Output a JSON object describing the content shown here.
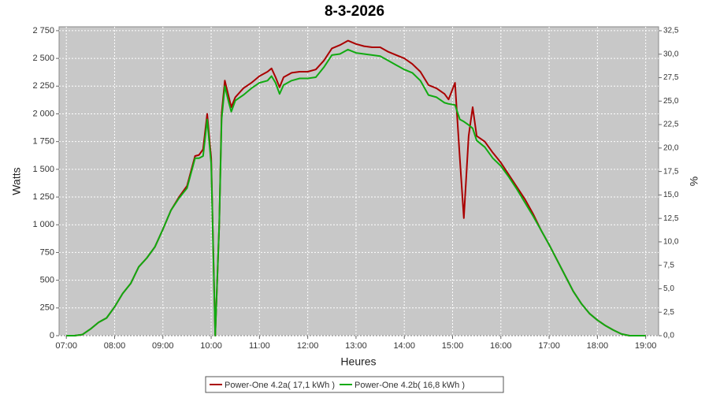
{
  "chart_data": {
    "type": "line",
    "title": "8-3-2026",
    "x_label": "Heures",
    "y_label": "Watts",
    "y2_label": "%",
    "x": [
      "07:00",
      "07:10",
      "07:20",
      "07:30",
      "07:40",
      "07:50",
      "08:00",
      "08:10",
      "08:20",
      "08:30",
      "08:40",
      "08:50",
      "09:00",
      "09:10",
      "09:20",
      "09:30",
      "09:40",
      "09:45",
      "09:50",
      "09:55",
      "10:00",
      "10:05",
      "10:10",
      "10:13",
      "10:17",
      "10:22",
      "10:25",
      "10:30",
      "10:40",
      "10:50",
      "11:00",
      "11:10",
      "11:15",
      "11:20",
      "11:25",
      "11:30",
      "11:40",
      "11:50",
      "12:00",
      "12:10",
      "12:20",
      "12:30",
      "12:40",
      "12:50",
      "13:00",
      "13:10",
      "13:20",
      "13:30",
      "13:40",
      "13:50",
      "14:00",
      "14:10",
      "14:20",
      "14:30",
      "14:40",
      "14:50",
      "14:55",
      "15:03",
      "15:09",
      "15:14",
      "15:20",
      "15:25",
      "15:30",
      "15:40",
      "15:50",
      "16:00",
      "16:10",
      "16:20",
      "16:30",
      "16:40",
      "16:50",
      "17:00",
      "17:10",
      "17:20",
      "17:30",
      "17:40",
      "17:50",
      "18:00",
      "18:10",
      "18:20",
      "18:30",
      "18:40",
      "18:50",
      "19:00"
    ],
    "series": [
      {
        "name": "Power-One 4.2a( 17,1 kWh )",
        "color": "#aa0000",
        "values": [
          0,
          0,
          10,
          60,
          120,
          160,
          260,
          380,
          470,
          620,
          700,
          800,
          960,
          1130,
          1250,
          1350,
          1620,
          1630,
          1680,
          2000,
          1600,
          0,
          1000,
          2000,
          2300,
          2150,
          2060,
          2150,
          2230,
          2280,
          2340,
          2380,
          2410,
          2330,
          2240,
          2330,
          2370,
          2380,
          2380,
          2400,
          2480,
          2590,
          2620,
          2660,
          2630,
          2610,
          2600,
          2600,
          2560,
          2530,
          2500,
          2450,
          2380,
          2260,
          2230,
          2180,
          2130,
          2280,
          1600,
          1060,
          1800,
          2060,
          1800,
          1750,
          1650,
          1560,
          1450,
          1340,
          1230,
          1100,
          950,
          820,
          680,
          540,
          400,
          290,
          200,
          140,
          90,
          50,
          15,
          0,
          0,
          0
        ]
      },
      {
        "name": "Power-One 4.2b( 16,8 kWh )",
        "color": "#11aa11",
        "values": [
          0,
          0,
          10,
          60,
          120,
          160,
          260,
          380,
          470,
          620,
          700,
          800,
          960,
          1130,
          1240,
          1330,
          1600,
          1600,
          1620,
          1950,
          1550,
          0,
          1000,
          1950,
          2250,
          2100,
          2020,
          2120,
          2170,
          2230,
          2280,
          2300,
          2340,
          2280,
          2180,
          2260,
          2300,
          2320,
          2320,
          2330,
          2420,
          2530,
          2540,
          2580,
          2550,
          2540,
          2530,
          2520,
          2480,
          2440,
          2400,
          2370,
          2300,
          2170,
          2150,
          2100,
          2090,
          2080,
          1950,
          1930,
          1900,
          1870,
          1760,
          1700,
          1600,
          1530,
          1430,
          1320,
          1200,
          1080,
          950,
          820,
          680,
          540,
          400,
          290,
          200,
          140,
          90,
          50,
          15,
          0,
          0,
          0
        ]
      }
    ],
    "xlim": [
      "06:51",
      "19:16"
    ],
    "xticks": [
      "07:00",
      "08:00",
      "09:00",
      "10:00",
      "11:00",
      "12:00",
      "13:00",
      "14:00",
      "15:00",
      "16:00",
      "17:00",
      "18:00",
      "19:00"
    ],
    "ylim": [
      0,
      2785
    ],
    "yticks": [
      0,
      250,
      500,
      750,
      {
        "value": 1000,
        "label": "1 000"
      },
      {
        "value": 1250,
        "label": "1 250"
      },
      {
        "value": 1500,
        "label": "1 500"
      },
      {
        "value": 1750,
        "label": "1 750"
      },
      {
        "value": 2000,
        "label": "2 000"
      },
      {
        "value": 2250,
        "label": "2 250"
      },
      {
        "value": 2500,
        "label": "2 500"
      },
      {
        "value": 2750,
        "label": "2 750"
      }
    ],
    "y2lim": [
      0,
      32.92
    ],
    "y2ticks": [
      {
        "value": 0,
        "label": "0,0"
      },
      {
        "value": 2.5,
        "label": "2,5"
      },
      {
        "value": 5,
        "label": "5,0"
      },
      {
        "value": 7.5,
        "label": "7,5"
      },
      {
        "value": 10,
        "label": "10,0"
      },
      {
        "value": 12.5,
        "label": "12,5"
      },
      {
        "value": 15,
        "label": "15,0"
      },
      {
        "value": 17.5,
        "label": "17,5"
      },
      {
        "value": 20,
        "label": "20,0"
      },
      {
        "value": 22.5,
        "label": "22,5"
      },
      {
        "value": 25,
        "label": "25,0"
      },
      {
        "value": 27.5,
        "label": "27,5"
      },
      {
        "value": 30,
        "label": "30,0"
      },
      {
        "value": 32.5,
        "label": "32,5"
      }
    ],
    "grid": true,
    "legend": "bottom"
  }
}
